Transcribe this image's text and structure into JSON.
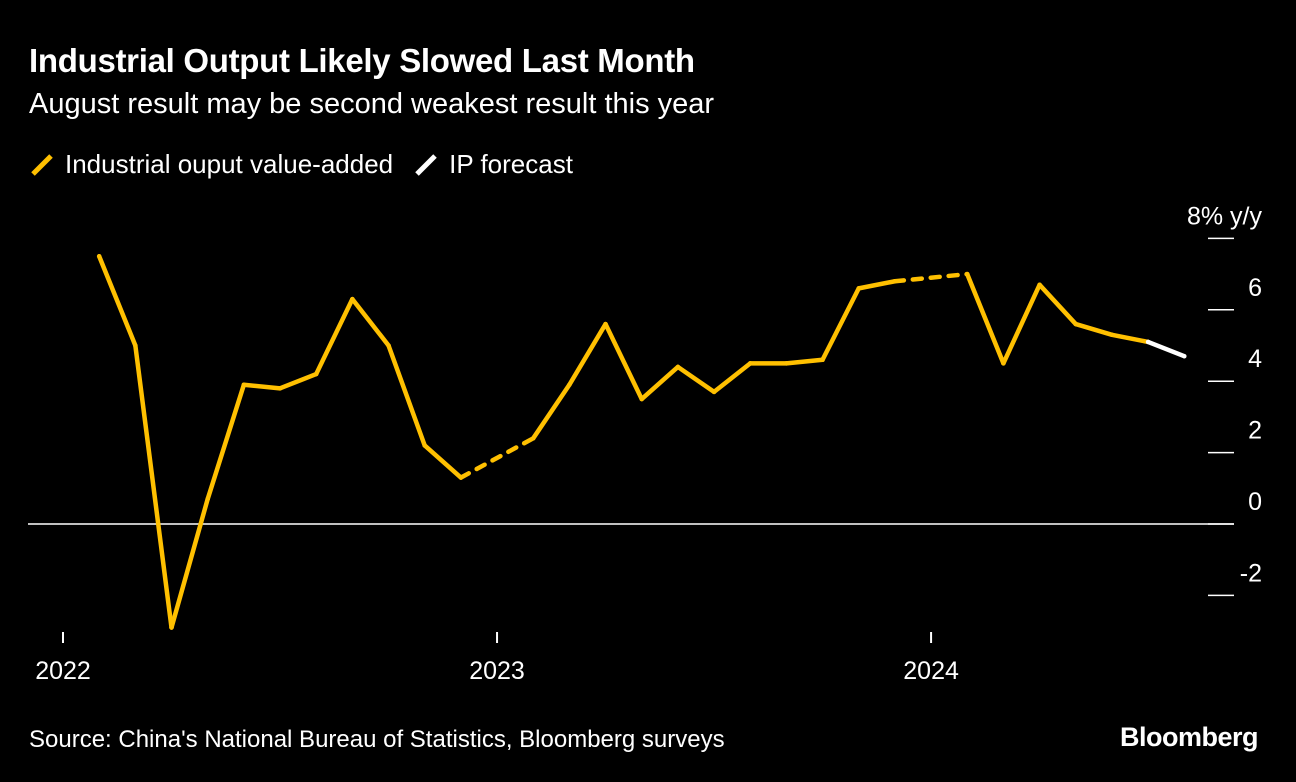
{
  "header": {
    "title": "Industrial Output Likely Slowed Last Month",
    "subtitle": "August result may be second weakest result this year"
  },
  "legend": {
    "items": [
      {
        "label": "Industrial ouput value-added",
        "color": "#ffc000"
      },
      {
        "label": "IP forecast",
        "color": "#ffffff"
      }
    ]
  },
  "footer": {
    "source": "Source: China's National Bureau of Statistics, Bloomberg surveys",
    "brand": "Bloomberg"
  },
  "chart_data": {
    "type": "line",
    "ylabel": "% y/y",
    "ylim": [
      -3,
      8
    ],
    "yticks": [
      -2,
      0,
      2,
      4,
      6,
      8
    ],
    "ytick_labels": [
      "-2",
      "0",
      "2",
      "4",
      "6",
      "8% y/y"
    ],
    "y_axis_side": "right",
    "xticks": [
      "2022-01",
      "2023-01",
      "2024-01"
    ],
    "xtick_labels": [
      "2022",
      "2023",
      "2024"
    ],
    "series": [
      {
        "name": "Industrial ouput value-added",
        "color": "#ffc000",
        "x": [
          "2022-02",
          "2022-03",
          "2022-04",
          "2022-05",
          "2022-06",
          "2022-07",
          "2022-08",
          "2022-09",
          "2022-10",
          "2022-11",
          "2022-12",
          "2023-02",
          "2023-03",
          "2023-04",
          "2023-05",
          "2023-06",
          "2023-07",
          "2023-08",
          "2023-09",
          "2023-10",
          "2023-11",
          "2023-12",
          "2024-02",
          "2024-03",
          "2024-04",
          "2024-05",
          "2024-06",
          "2024-07"
        ],
        "y": [
          7.5,
          5.0,
          -2.9,
          0.7,
          3.9,
          3.8,
          4.2,
          6.3,
          5.0,
          2.2,
          1.3,
          2.4,
          3.9,
          5.6,
          3.5,
          4.4,
          3.7,
          4.5,
          4.5,
          4.6,
          6.6,
          6.8,
          7.0,
          4.5,
          6.7,
          5.6,
          5.3,
          5.1
        ],
        "note": "Jan-Feb values combined; Jan/Dec gaps drawn dashed"
      },
      {
        "name": "IP forecast",
        "color": "#ffffff",
        "x": [
          "2024-07",
          "2024-08"
        ],
        "y": [
          5.1,
          4.7
        ]
      }
    ]
  }
}
